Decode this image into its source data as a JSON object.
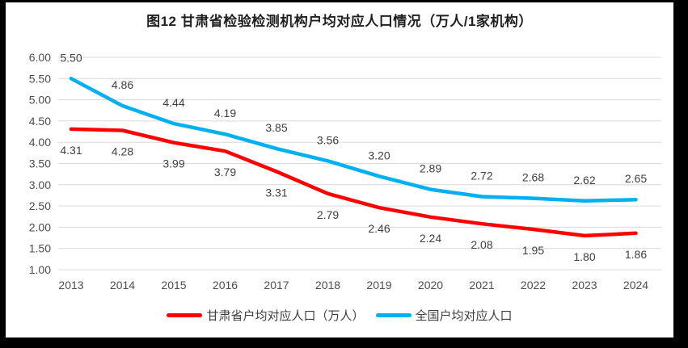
{
  "chart_data": {
    "type": "line",
    "title": "图12  甘肃省检验检测机构户均对应人口情况（万人/1家机构）",
    "categories": [
      "2013",
      "2014",
      "2015",
      "2016",
      "2017",
      "2018",
      "2019",
      "2020",
      "2021",
      "2022",
      "2023",
      "2024"
    ],
    "series": [
      {
        "name": "甘肃省户均对应人口（万人）",
        "color": "#FF0000",
        "label_position": "below",
        "values": [
          4.31,
          4.28,
          3.99,
          3.79,
          3.31,
          2.79,
          2.46,
          2.24,
          2.08,
          1.95,
          1.8,
          1.86
        ]
      },
      {
        "name": "全国户均对应人口",
        "color": "#00B0F0",
        "label_position": "above",
        "values": [
          5.5,
          4.86,
          4.44,
          4.19,
          3.85,
          3.56,
          3.2,
          2.89,
          2.72,
          2.68,
          2.62,
          2.65
        ]
      }
    ],
    "ylim": [
      1.0,
      6.0
    ],
    "ytick_step": 0.5,
    "ytick_labels": [
      "6.00",
      "5.50",
      "5.00",
      "4.50",
      "4.00",
      "3.50",
      "3.00",
      "2.50",
      "2.00",
      "1.50",
      "1.00"
    ],
    "grid": true,
    "legend_position": "bottom",
    "colors": {
      "gridline": "#D9D9D9",
      "axis_text": "#4D4D4D",
      "data_label_text": "#404040",
      "title_text": "#1F1F1F",
      "frame": "#000000",
      "background": "#FFFFFF"
    }
  }
}
